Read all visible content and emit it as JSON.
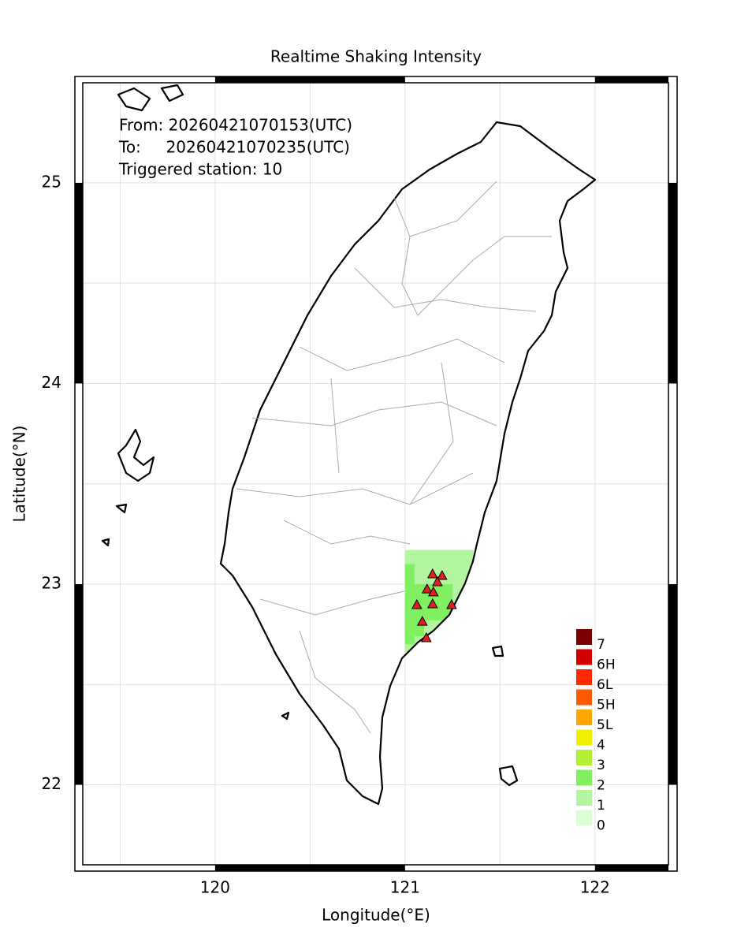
{
  "chart_data": {
    "type": "map",
    "title": "Realtime Shaking Intensity",
    "info": [
      "From: 20260421070153(UTC)",
      "To:     20260421070235(UTC)",
      "Triggered station: 10"
    ],
    "x_label": "Longitude(°E)",
    "y_label": "Latitude(°N)",
    "xlim": [
      119.27,
      122.42
    ],
    "ylim": [
      21.57,
      25.53
    ],
    "xticks": [
      120,
      121,
      122
    ],
    "yticks": [
      22,
      23,
      24,
      25
    ],
    "xgrid": [
      119.5,
      120,
      120.5,
      121,
      121.5,
      122
    ],
    "ygrid": [
      22,
      22.5,
      23,
      23.5,
      24,
      24.5,
      25
    ],
    "legend": {
      "labels": [
        "7",
        "6H",
        "6L",
        "5H",
        "5L",
        "4",
        "3",
        "2",
        "1",
        "0"
      ],
      "colors": [
        "#7a0000",
        "#d40000",
        "#ff2a00",
        "#ff5a00",
        "#ffa500",
        "#f0f000",
        "#b4f032",
        "#80f060",
        "#b4f5a0",
        "#dcffd8"
      ]
    },
    "cells": [
      {
        "lon": [
          121.0,
          121.36
        ],
        "lat": [
          22.66,
          23.17
        ],
        "level": "1"
      },
      {
        "lon": [
          121.0,
          121.05
        ],
        "lat": [
          22.7,
          23.1
        ],
        "level": "2"
      },
      {
        "lon": [
          121.05,
          121.25
        ],
        "lat": [
          22.82,
          23.0
        ],
        "level": "2"
      },
      {
        "lon": [
          121.0,
          121.1
        ],
        "lat": [
          22.74,
          22.85
        ],
        "level": "2"
      }
    ],
    "stations": {
      "color": "#e02020",
      "lon": [
        121.145,
        121.195,
        121.17,
        121.116,
        121.149,
        121.062,
        121.145,
        121.245,
        121.091,
        121.112
      ],
      "lat": [
        23.051,
        23.043,
        23.012,
        22.976,
        22.961,
        22.898,
        22.902,
        22.898,
        22.815,
        22.733
      ]
    }
  }
}
